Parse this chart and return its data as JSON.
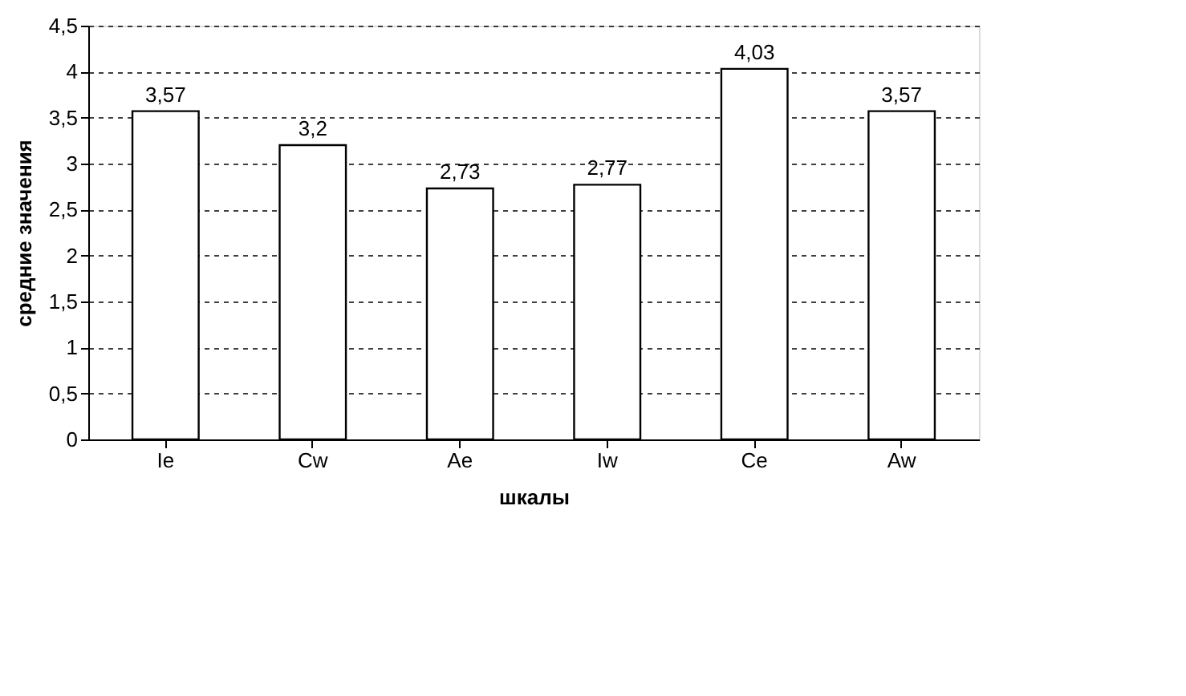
{
  "chart_data": {
    "type": "bar",
    "xlabel": "шкалы",
    "ylabel": "средние значения",
    "categories": [
      "Ie",
      "Cw",
      "Ae",
      "Iw",
      "Ce",
      "Aw"
    ],
    "values": [
      3.57,
      3.2,
      2.73,
      2.77,
      4.03,
      3.57
    ],
    "value_labels": [
      "3,57",
      "3,2",
      "2,73",
      "2,77",
      "4,03",
      "3,57"
    ],
    "color": "#ffffff",
    "ylim": [
      0,
      4.5
    ],
    "yticks": [
      0,
      {
        "value": 0.5,
        "label": "0,5"
      },
      1,
      {
        "value": 1.5,
        "label": "1,5"
      },
      2,
      {
        "value": 2.5,
        "label": "2,5"
      },
      3,
      {
        "value": 3.5,
        "label": "3,5"
      },
      4,
      {
        "value": 4.5,
        "label": "4,5"
      }
    ],
    "grid": "y"
  }
}
